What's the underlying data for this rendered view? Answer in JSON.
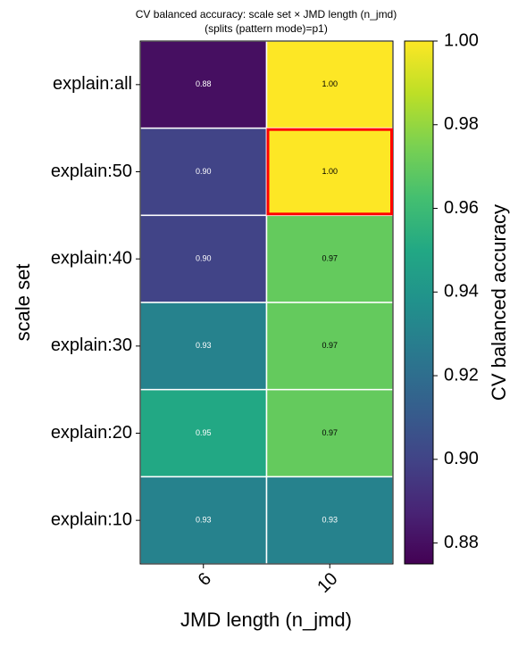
{
  "chart_data": {
    "type": "heatmap",
    "title": "CV balanced accuracy: scale set × JMD length (n_jmd)",
    "subtitle": "(splits (pattern mode)=p1)",
    "x_label": "JMD length (n_jmd)",
    "y_label": "scale set",
    "colorbar_label": "CV balanced accuracy",
    "x_categories": [
      "6",
      "10"
    ],
    "y_categories": [
      "explain:all",
      "explain:50",
      "explain:40",
      "explain:30",
      "explain:20",
      "explain:10"
    ],
    "values": [
      [
        0.88,
        1.0
      ],
      [
        0.9,
        1.0
      ],
      [
        0.9,
        0.97
      ],
      [
        0.93,
        0.97
      ],
      [
        0.95,
        0.97
      ],
      [
        0.93,
        0.93
      ]
    ],
    "value_labels": [
      [
        "0.88",
        "1.00"
      ],
      [
        "0.90",
        "1.00"
      ],
      [
        "0.90",
        "0.97"
      ],
      [
        "0.93",
        "0.97"
      ],
      [
        "0.95",
        "0.97"
      ],
      [
        "0.93",
        "0.93"
      ]
    ],
    "colormap": "viridis",
    "clim": [
      0.875,
      1.0
    ],
    "cticks": [
      {
        "value": 0.88,
        "label": "0.88"
      },
      {
        "value": 0.9,
        "label": "0.90"
      },
      {
        "value": 0.92,
        "label": "0.92"
      },
      {
        "value": 0.94,
        "label": "0.94"
      },
      {
        "value": 0.96,
        "label": "0.96"
      },
      {
        "value": 0.98,
        "label": "0.98"
      },
      {
        "value": 1.0,
        "label": "1.00"
      }
    ],
    "highlight_cell": [
      1,
      1
    ],
    "highlight_color": "#ff0000"
  }
}
